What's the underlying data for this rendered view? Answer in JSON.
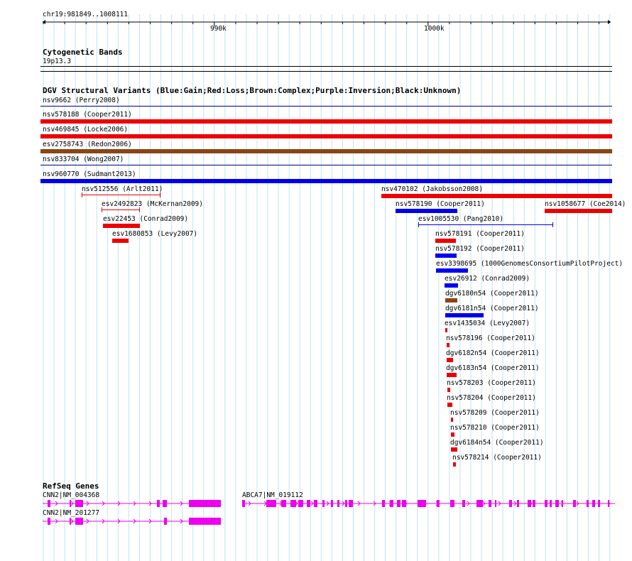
{
  "browser": {
    "position": "chr19:981849..1008111",
    "ruler_labels": [
      "990k",
      "1000k"
    ],
    "colors": {
      "gain": "#0000ee",
      "loss": "#ee0000",
      "complex": "#8b4513",
      "gene": "#ee00ee",
      "grid": "#bfe4f2",
      "track_line": "#00008b"
    }
  },
  "tracks": {
    "cytobands": {
      "title": "Cytogenetic Bands",
      "band": "19p13.3"
    },
    "dgv": {
      "title": "DGV Structural Variants (Blue:Gain;Red:Loss;Brown:Complex;Purple:Inversion;Black:Unknown)",
      "features": [
        {
          "label": "nsv9662 (Perry2008)",
          "type": "gain"
        },
        {
          "label": "nsv578188 (Cooper2011)",
          "type": "loss"
        },
        {
          "label": "nsv469845 (Locke2006)",
          "type": "loss"
        },
        {
          "label": "esv2758743 (Redon2006)",
          "type": "complex"
        },
        {
          "label": "nsv833704 (Wong2007)",
          "type": "gain"
        },
        {
          "label": "nsv960770 (Sudmant2013)",
          "type": "gain"
        },
        {
          "label": "nsv512556 (Arlt2011)",
          "type": "loss"
        },
        {
          "label": "esv2492823 (McKernan2009)",
          "type": "loss"
        },
        {
          "label": "esv22453 (Conrad2009)",
          "type": "loss"
        },
        {
          "label": "esv1680853 (Levy2007)",
          "type": "loss"
        },
        {
          "label": "nsv470102 (Jakobsson2008)",
          "type": "loss"
        },
        {
          "label": "nsv578190 (Cooper2011)",
          "type": "gain"
        },
        {
          "label": "nsv1058677 (Coe2014)",
          "type": "loss"
        },
        {
          "label": "esv1005530 (Pang2010)",
          "type": "gain"
        },
        {
          "label": "nsv578191 (Cooper2011)",
          "type": "loss"
        },
        {
          "label": "nsv578192 (Cooper2011)",
          "type": "gain"
        },
        {
          "label": "esv3398695 (1000GenomesConsortiumPilotProject)",
          "type": "gain"
        },
        {
          "label": "esv26912 (Conrad2009)",
          "type": "gain"
        },
        {
          "label": "dgv6180n54 (Cooper2011)",
          "type": "complex"
        },
        {
          "label": "dgv6181n54 (Cooper2011)",
          "type": "gain"
        },
        {
          "label": "esv1435034 (Levy2007)",
          "type": "loss"
        },
        {
          "label": "nsv578196 (Cooper2011)",
          "type": "loss"
        },
        {
          "label": "dgv6182n54 (Cooper2011)",
          "type": "loss"
        },
        {
          "label": "dgv6183n54 (Cooper2011)",
          "type": "loss"
        },
        {
          "label": "nsv578203 (Cooper2011)",
          "type": "loss"
        },
        {
          "label": "nsv578204 (Cooper2011)",
          "type": "loss"
        },
        {
          "label": "nsv578209 (Cooper2011)",
          "type": "loss"
        },
        {
          "label": "nsv578210 (Cooper2011)",
          "type": "loss"
        },
        {
          "label": "dgv6184n54 (Cooper2011)",
          "type": "loss"
        },
        {
          "label": "nsv578214 (Cooper2011)",
          "type": "loss"
        }
      ]
    },
    "refseq": {
      "title": "RefSeq Genes",
      "genes": [
        {
          "label": "CNN2|NM_004368"
        },
        {
          "label": "ABCA7|NM_019112"
        },
        {
          "label": "CNN2|NM_201277"
        }
      ]
    }
  }
}
